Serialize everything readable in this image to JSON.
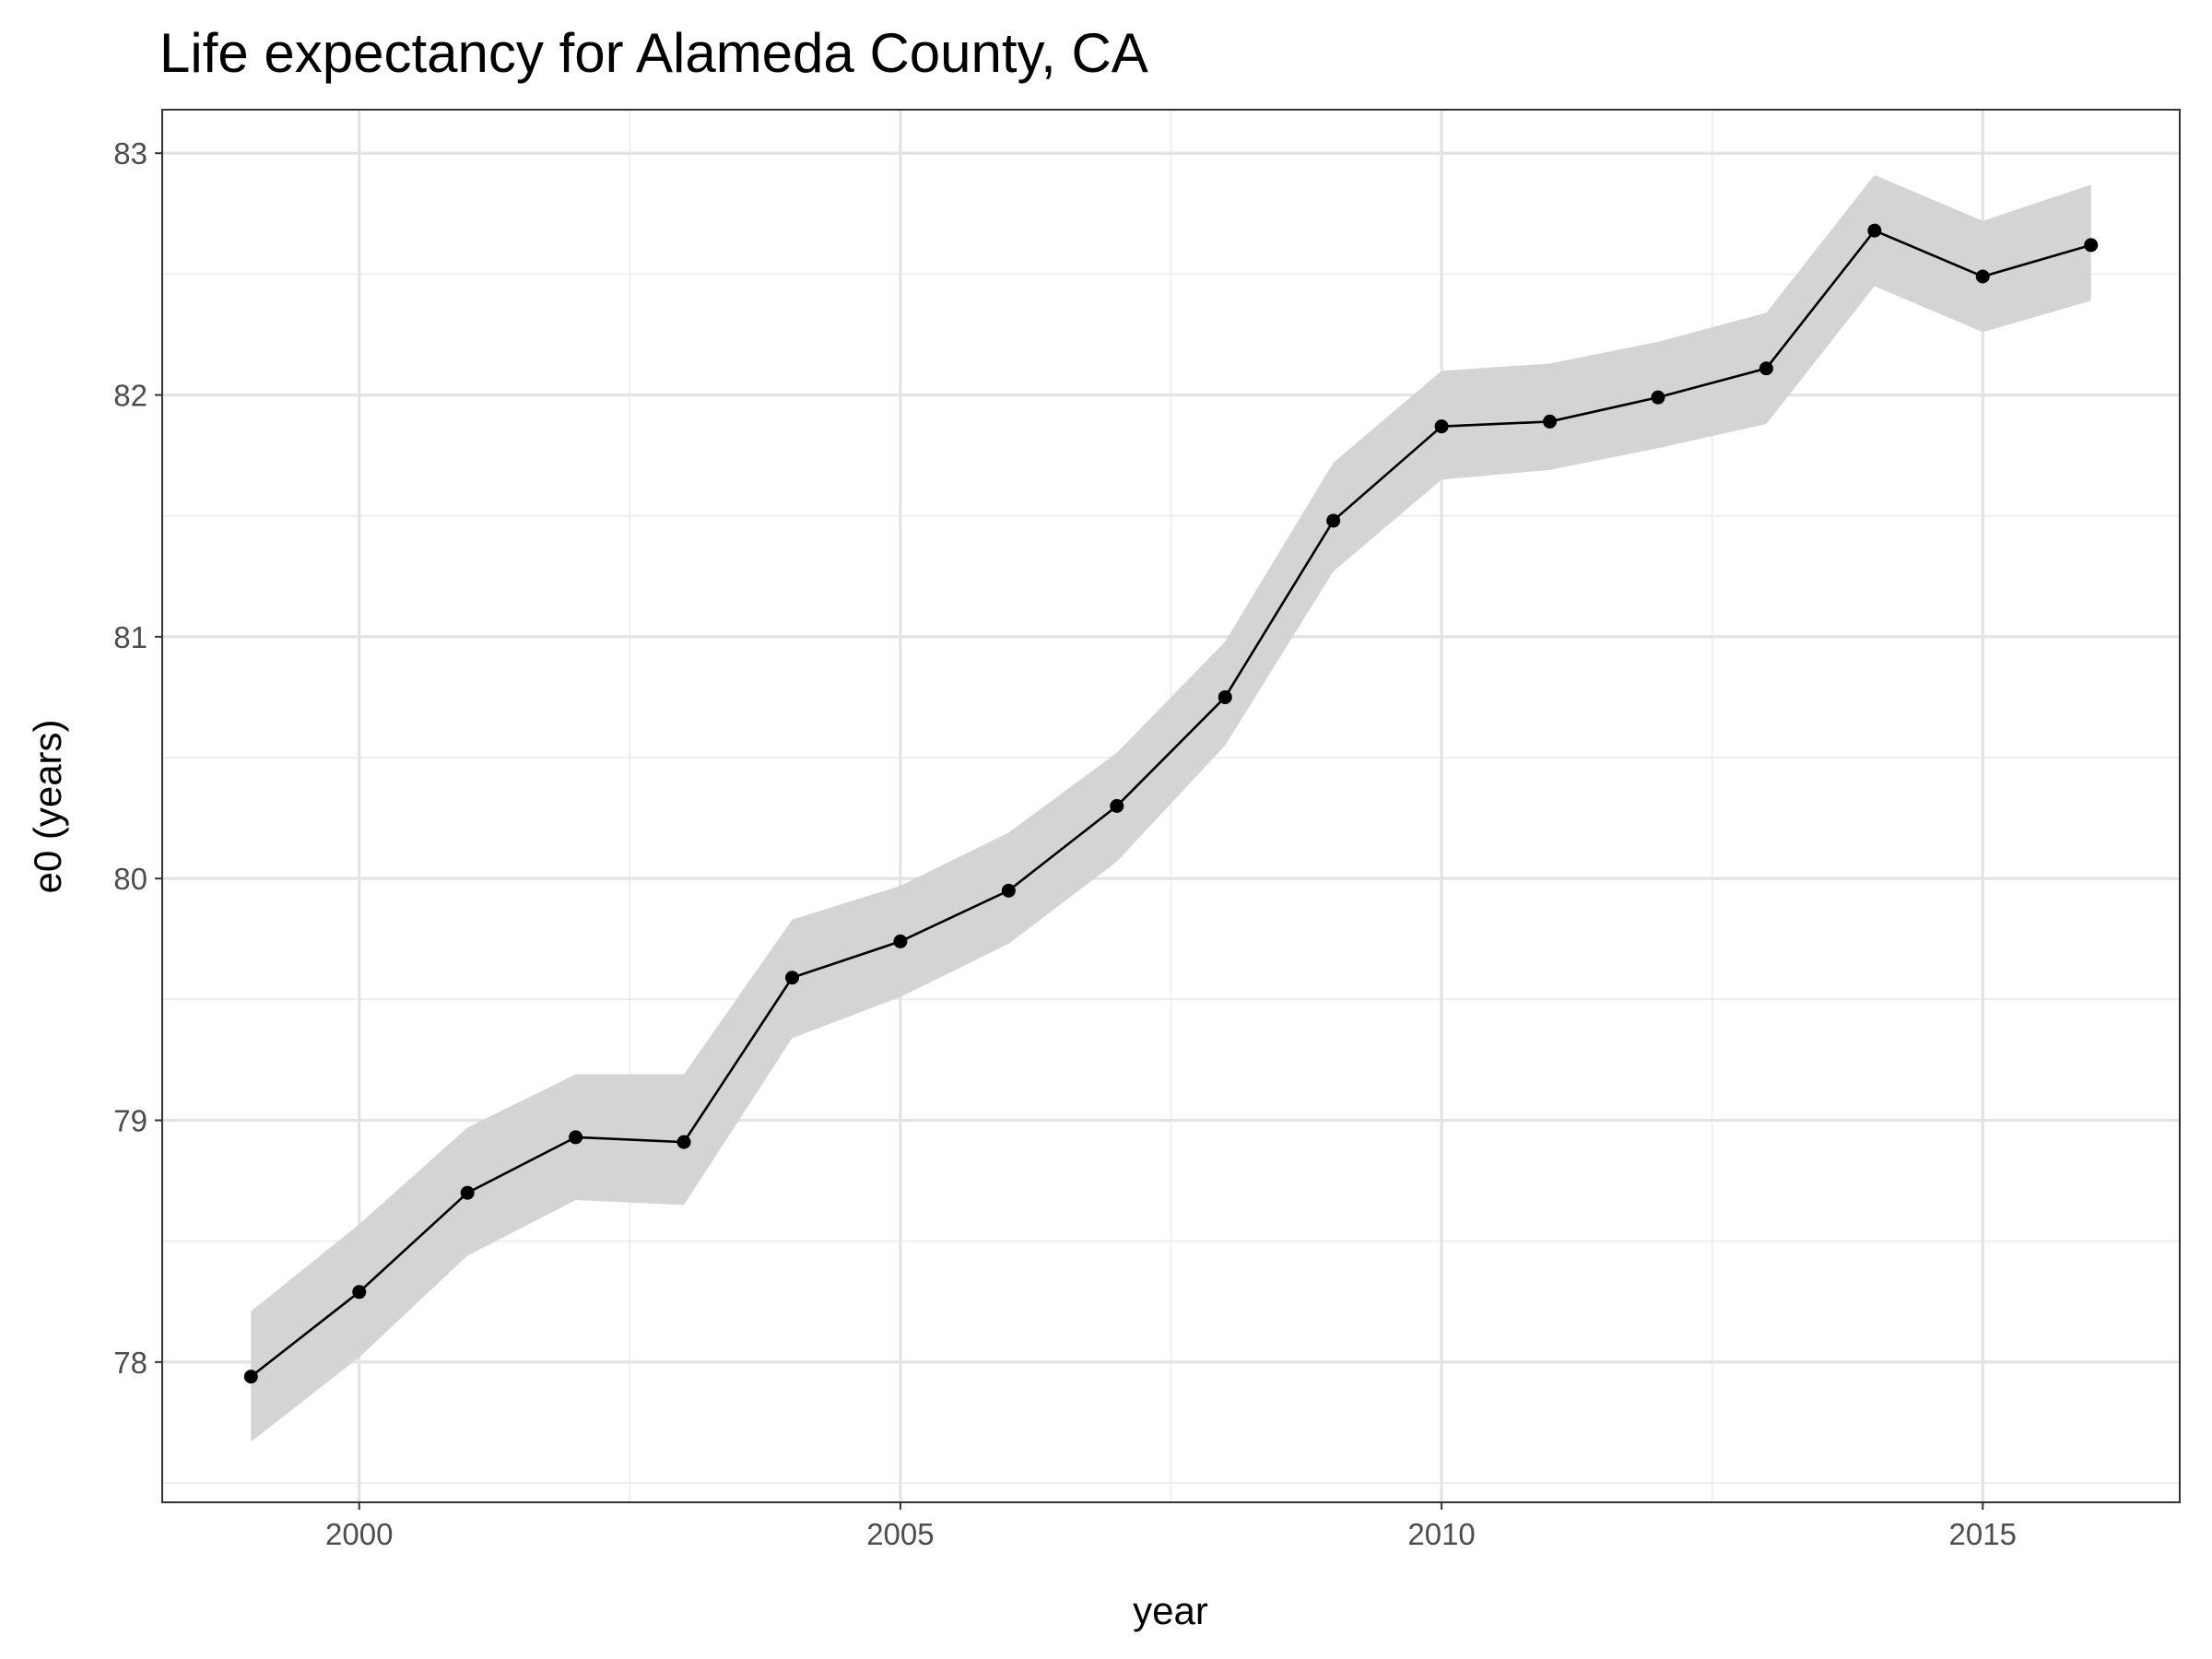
{
  "chart_data": {
    "type": "line",
    "title": "Life expectancy for Alameda County, CA",
    "x_label": "year",
    "y_label": "e0 (years)",
    "x": [
      1999,
      2000,
      2001,
      2002,
      2003,
      2004,
      2005,
      2006,
      2007,
      2008,
      2009,
      2010,
      2011,
      2012,
      2013,
      2014,
      2015,
      2016
    ],
    "values": [
      77.94,
      78.29,
      78.7,
      78.93,
      78.91,
      79.59,
      79.74,
      79.95,
      80.3,
      80.75,
      81.48,
      81.87,
      81.89,
      81.99,
      82.11,
      82.68,
      82.49,
      82.62
    ],
    "upper": [
      78.21,
      78.57,
      78.97,
      79.19,
      79.19,
      79.83,
      79.97,
      80.19,
      80.52,
      80.98,
      81.72,
      82.1,
      82.13,
      82.22,
      82.34,
      82.91,
      82.72,
      82.87
    ],
    "lower": [
      77.67,
      78.02,
      78.44,
      78.67,
      78.65,
      79.34,
      79.51,
      79.73,
      80.07,
      80.55,
      81.27,
      81.65,
      81.69,
      81.78,
      81.88,
      82.45,
      82.26,
      82.39
    ],
    "color": "#000000",
    "band_color": "#d4d4d4",
    "xlim": [
      1998.18,
      2016.82
    ],
    "ylim": [
      77.42,
      83.18
    ],
    "xticks": [
      2000,
      2005,
      2010,
      2015
    ],
    "yticks": [
      78,
      79,
      80,
      81,
      82,
      83
    ],
    "minor_xticks": [
      2002.5,
      2007.5,
      2012.5
    ],
    "minor_yticks": [
      77.5,
      78.5,
      79.5,
      80.5,
      81.5,
      82.5
    ],
    "grid": true
  }
}
